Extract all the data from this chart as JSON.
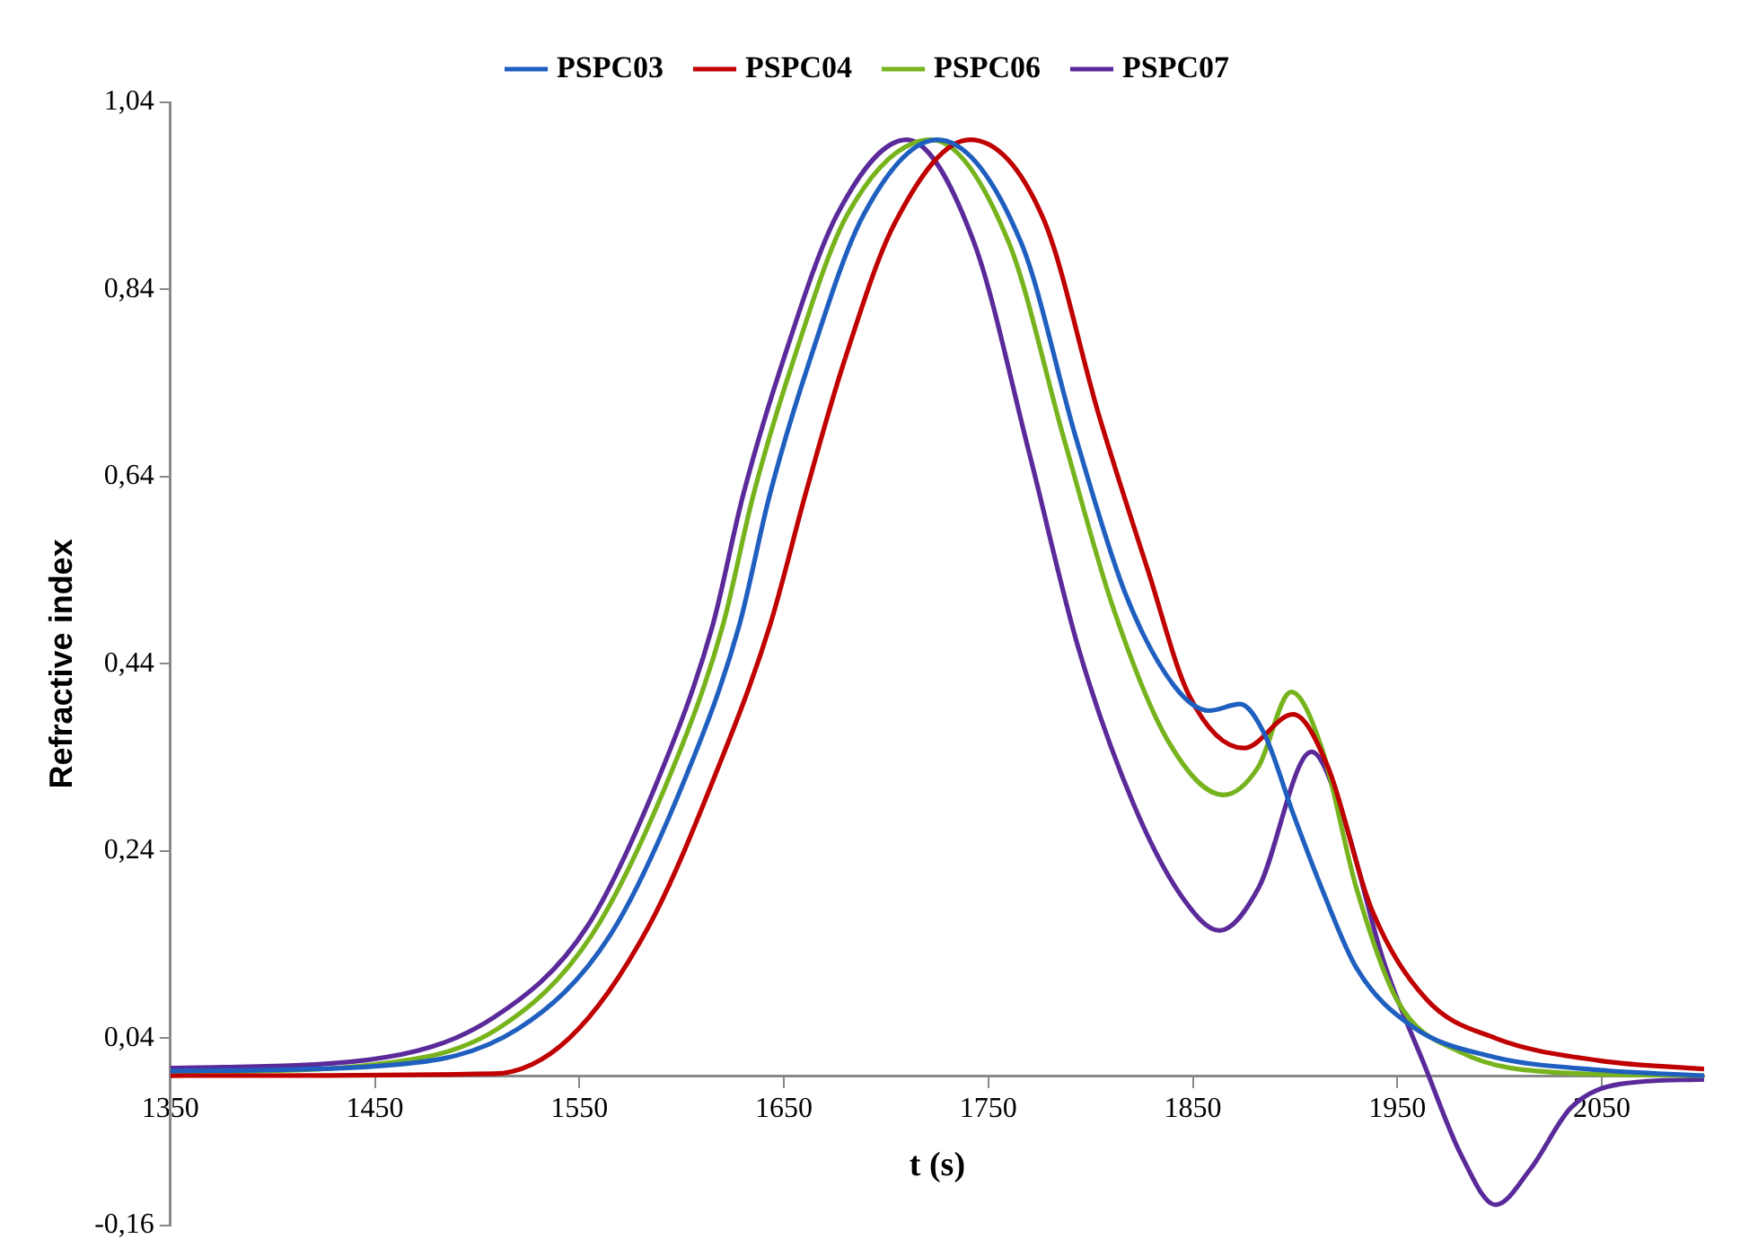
{
  "chart_data": {
    "type": "line",
    "xlabel": "t (s)",
    "ylabel": "Refractive index",
    "legend": "top",
    "marker": "none",
    "grid": false,
    "xlim": [
      1350,
      2100
    ],
    "xticks": [
      1350,
      1450,
      1550,
      1650,
      1750,
      1850,
      1950,
      2050
    ],
    "ylim": [
      -0.16,
      1.04
    ],
    "yticks": [
      {
        "value": -0.16,
        "label": "-0,16"
      },
      {
        "value": 0.04,
        "label": "0,04"
      },
      {
        "value": 0.24,
        "label": "0,24"
      },
      {
        "value": 0.44,
        "label": "0,44"
      },
      {
        "value": 0.64,
        "label": "0,64"
      },
      {
        "value": 0.84,
        "label": "0,84"
      },
      {
        "value": 1.04,
        "label": "1,04"
      }
    ],
    "series": [
      {
        "name": "PSPC03",
        "color": "#1f5fbf",
        "x": [
          1350,
          1450,
          1520,
          1565,
          1604,
          1628,
          1643,
          1662,
          1689,
          1725,
          1766,
          1793,
          1817,
          1841,
          1858,
          1873,
          1885,
          1899,
          1913,
          1930,
          1957,
          1997,
          2049,
          2100
        ],
        "values": [
          0.005,
          0.01,
          0.05,
          0.15,
          0.33,
          0.48,
          0.62,
          0.76,
          0.92,
          1.0,
          0.89,
          0.68,
          0.515,
          0.416,
          0.39,
          0.397,
          0.365,
          0.28,
          0.2,
          0.115,
          0.053,
          0.02,
          0.006,
          0.0
        ]
      },
      {
        "name": "PSPC04",
        "color": "#c00000",
        "x": [
          1350,
          1508,
          1545,
          1584,
          1618,
          1643,
          1661,
          1679,
          1704,
          1741,
          1777,
          1804,
          1828,
          1848,
          1875,
          1899,
          1916,
          1937,
          1964,
          1998,
          2049,
          2100
        ],
        "values": [
          0.0,
          0.002,
          0.04,
          0.16,
          0.33,
          0.48,
          0.625,
          0.76,
          0.91,
          1.0,
          0.915,
          0.706,
          0.54,
          0.407,
          0.35,
          0.386,
          0.33,
          0.18,
          0.082,
          0.04,
          0.016,
          0.007
        ]
      },
      {
        "name": "PSPC06",
        "color": "#77b31d",
        "x": [
          1350,
          1450,
          1510,
          1556,
          1596,
          1620,
          1635,
          1654,
          1681,
          1722,
          1760,
          1787,
          1811,
          1838,
          1865,
          1882,
          1898,
          1913,
          1930,
          1950,
          1981,
          2031,
          2100
        ],
        "values": [
          0.003,
          0.012,
          0.05,
          0.15,
          0.33,
          0.48,
          0.62,
          0.76,
          0.92,
          1.0,
          0.89,
          0.68,
          0.5,
          0.357,
          0.3,
          0.33,
          0.41,
          0.35,
          0.2,
          0.08,
          0.025,
          0.003,
          0.0
        ]
      },
      {
        "name": "PSPC07",
        "color": "#5b2a9a",
        "x": [
          1350,
          1447,
          1508,
          1554,
          1591,
          1615,
          1630,
          1649,
          1676,
          1710,
          1743,
          1770,
          1794,
          1821,
          1845,
          1863,
          1882,
          1908,
          1923,
          1943,
          1964,
          1981,
          1998,
          2015,
          2035,
          2059,
          2100
        ],
        "values": [
          0.008,
          0.017,
          0.062,
          0.16,
          0.33,
          0.48,
          0.62,
          0.76,
          0.92,
          1.0,
          0.89,
          0.665,
          0.457,
          0.29,
          0.19,
          0.155,
          0.2,
          0.346,
          0.28,
          0.124,
          0.007,
          -0.084,
          -0.138,
          -0.1,
          -0.034,
          -0.009,
          -0.004
        ]
      }
    ]
  }
}
